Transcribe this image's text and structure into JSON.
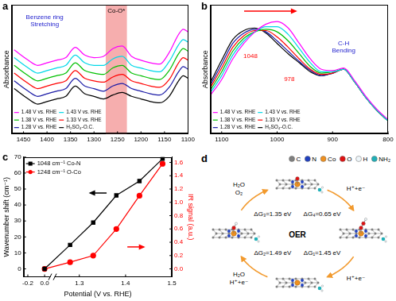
{
  "chart_data": [
    {
      "panel": "a",
      "type": "line",
      "y_label": "Absorbance",
      "x": [
        1470,
        1440,
        1420,
        1400,
        1380,
        1360,
        1340,
        1320,
        1300,
        1280,
        1260,
        1240,
        1220,
        1200,
        1180,
        1160,
        1140,
        1120,
        1110,
        1100
      ],
      "series": [
        {
          "name": "1.48 V vs. RHE",
          "color": "#ff00ff",
          "values": [
            0.65,
            0.57,
            0.53,
            0.55,
            0.57,
            0.59,
            0.67,
            0.61,
            0.59,
            0.6,
            0.66,
            0.68,
            0.6,
            0.57,
            0.55,
            0.54,
            0.63,
            0.77,
            0.81,
            0.79
          ]
        },
        {
          "name": "1.43 V vs. RHE",
          "color": "#00d8e8",
          "values": [
            0.59,
            0.51,
            0.47,
            0.49,
            0.51,
            0.53,
            0.61,
            0.55,
            0.53,
            0.53,
            0.58,
            0.6,
            0.53,
            0.51,
            0.49,
            0.48,
            0.56,
            0.69,
            0.73,
            0.71
          ]
        },
        {
          "name": "1.38 V vs. RHE",
          "color": "#00c000",
          "values": [
            0.53,
            0.45,
            0.41,
            0.43,
            0.45,
            0.47,
            0.55,
            0.49,
            0.47,
            0.46,
            0.51,
            0.53,
            0.47,
            0.45,
            0.43,
            0.42,
            0.49,
            0.62,
            0.66,
            0.64
          ]
        },
        {
          "name": "1.33 V vs. RHE",
          "color": "#ff0000",
          "values": [
            0.47,
            0.39,
            0.35,
            0.37,
            0.39,
            0.41,
            0.49,
            0.43,
            0.41,
            0.4,
            0.44,
            0.46,
            0.41,
            0.39,
            0.37,
            0.36,
            0.42,
            0.55,
            0.59,
            0.57
          ]
        },
        {
          "name": "1.28 V vs. RHE",
          "color": "#1a1aa6",
          "values": [
            0.41,
            0.33,
            0.29,
            0.31,
            0.33,
            0.35,
            0.43,
            0.37,
            0.35,
            0.33,
            0.37,
            0.39,
            0.35,
            0.33,
            0.31,
            0.3,
            0.36,
            0.48,
            0.52,
            0.5
          ]
        },
        {
          "name": "H₂SO₄-O.C.",
          "color": "#000000",
          "values": [
            0.35,
            0.27,
            0.23,
            0.25,
            0.27,
            0.29,
            0.37,
            0.31,
            0.29,
            0.27,
            0.3,
            0.32,
            0.29,
            0.27,
            0.25,
            0.24,
            0.29,
            0.41,
            0.45,
            0.43
          ]
        }
      ],
      "xlim": [
        1475,
        1100
      ],
      "xticks": [
        1450,
        1400,
        1350,
        1300,
        1250,
        1200,
        1150,
        1100
      ],
      "ylim": [
        0,
        1
      ],
      "tick_labels": "x",
      "grid": false,
      "legend": "lower left",
      "annotations": [
        {
          "text": [
            "Benzene ring",
            "Stretching"
          ],
          "x": 1405,
          "y": 0.9,
          "color": "#1a1acc"
        },
        {
          "text": "Co-O*",
          "x": [
            1275,
            1230
          ],
          "y": 0.95,
          "color": "#000000"
        }
      ]
    },
    {
      "panel": "b",
      "type": "line",
      "y_label": "Absorbance",
      "x": [
        1120,
        1100,
        1080,
        1060,
        1040,
        1020,
        1000,
        980,
        960,
        940,
        920,
        900,
        880,
        860,
        840,
        820,
        800
      ],
      "series": [
        {
          "name": "1.48 V vs. RHE",
          "color": "#ff00ff",
          "values": [
            0.3,
            0.42,
            0.58,
            0.7,
            0.79,
            0.85,
            0.87,
            0.82,
            0.7,
            0.58,
            0.5,
            0.49,
            0.51,
            0.41,
            0.29,
            0.19,
            0.11
          ]
        },
        {
          "name": "1.43 V vs. RHE",
          "color": "#00d8e8",
          "values": [
            0.32,
            0.45,
            0.61,
            0.72,
            0.79,
            0.83,
            0.83,
            0.77,
            0.66,
            0.55,
            0.48,
            0.48,
            0.5,
            0.4,
            0.28,
            0.18,
            0.1
          ]
        },
        {
          "name": "1.38 V vs. RHE",
          "color": "#00c000",
          "values": [
            0.34,
            0.48,
            0.64,
            0.74,
            0.79,
            0.81,
            0.79,
            0.72,
            0.62,
            0.52,
            0.47,
            0.48,
            0.5,
            0.4,
            0.28,
            0.18,
            0.1
          ]
        },
        {
          "name": "1.33 V vs. RHE",
          "color": "#ff0000",
          "values": [
            0.36,
            0.51,
            0.67,
            0.76,
            0.8,
            0.8,
            0.75,
            0.67,
            0.58,
            0.5,
            0.46,
            0.47,
            0.5,
            0.4,
            0.28,
            0.18,
            0.1
          ]
        },
        {
          "name": "1.28 V vs. RHE",
          "color": "#1a1aa6",
          "values": [
            0.38,
            0.54,
            0.7,
            0.78,
            0.81,
            0.79,
            0.72,
            0.64,
            0.56,
            0.49,
            0.45,
            0.47,
            0.5,
            0.4,
            0.28,
            0.18,
            0.1
          ]
        },
        {
          "name": "H₂SO₄-O.C.",
          "color": "#000000",
          "values": [
            0.4,
            0.57,
            0.73,
            0.8,
            0.82,
            0.78,
            0.7,
            0.62,
            0.55,
            0.48,
            0.45,
            0.47,
            0.5,
            0.4,
            0.28,
            0.18,
            0.1
          ]
        }
      ],
      "xlim": [
        1120,
        800
      ],
      "xticks": [
        1100,
        1000,
        900,
        800
      ],
      "ylim": [
        0,
        1
      ],
      "tick_labels": "x",
      "grid": false,
      "legend": "lower left",
      "annotations": [
        {
          "text": "1048",
          "x": 1048,
          "y": 0.6,
          "color": "#ff0000"
        },
        {
          "text": "978",
          "x": 978,
          "y": 0.42,
          "color": "#ff0000"
        },
        {
          "text": [
            "C-H",
            "Bending"
          ],
          "x": 880,
          "y": 0.7,
          "color": "#1a1acc"
        }
      ]
    },
    {
      "panel": "c",
      "type": "line",
      "x_label": "Potential (V vs. RHE)",
      "y_label": "Wavenumber shift (cm⁻¹)",
      "y2_label": "IR signal (a.u.)",
      "x": [
        0,
        1.28,
        1.33,
        1.38,
        1.43,
        1.48
      ],
      "series": [
        {
          "name": "1048 cm⁻¹ Co-N",
          "color": "#000000",
          "marker": "square",
          "values": [
            0,
            15,
            29,
            46,
            55,
            69
          ]
        },
        {
          "name": "1248 cm⁻¹ O-Co",
          "color": "#ff0000",
          "marker": "circle",
          "axis": "y2",
          "values": [
            0,
            0.1,
            0.2,
            0.6,
            1.1,
            1.58
          ]
        }
      ],
      "xlim": [
        -0.25,
        1.5
      ],
      "xticks": [
        -0.2,
        {
          "value": 0,
          "label": "0.0"
        },
        1.3,
        1.4,
        1.5
      ],
      "ylim": [
        -5,
        70
      ],
      "yticks": [
        0,
        10,
        20,
        30,
        40,
        50,
        60,
        70
      ],
      "y2lim": [
        -0.12,
        1.68
      ],
      "y2ticks": [
        {
          "value": 0,
          "label": "0.0"
        },
        0.2,
        0.4,
        0.6,
        0.8,
        {
          "value": 1,
          "label": "1.0"
        },
        1.2,
        1.4,
        1.6
      ],
      "grid": false,
      "legend": "upper left"
    }
  ],
  "diagram": {
    "panel": "d",
    "center_label": "OER",
    "legend": [
      {
        "label": "C",
        "color": "#7f7f7f"
      },
      {
        "label": "N",
        "color": "#2040c0"
      },
      {
        "label": "Co",
        "color": "#f0901e"
      },
      {
        "label": "O",
        "color": "#e01010"
      },
      {
        "label": "H",
        "color": "#eef6fa"
      },
      {
        "label": "NH₂",
        "color": "#20b0b8"
      }
    ],
    "steps": [
      {
        "species": [
          "H₂O",
          "O₂"
        ],
        "energy": "ΔG₃=1.35 eV"
      },
      {
        "species": [
          "H⁺+e⁻"
        ],
        "energy": "ΔG₄=0.65 eV"
      },
      {
        "species": [
          "H⁺+e⁻"
        ],
        "energy": "ΔG₁=1.45 eV"
      },
      {
        "species": [
          "H₂O",
          "H⁺+e⁻"
        ],
        "energy": "ΔG₂=1.49 eV"
      }
    ]
  }
}
